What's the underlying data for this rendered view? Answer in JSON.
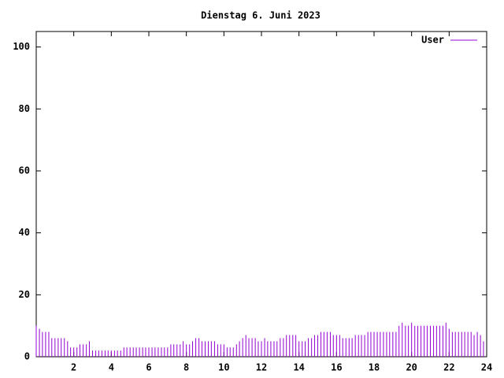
{
  "chart_data": {
    "type": "impulses",
    "title": "Dienstag 6. Juni 2023",
    "x": [
      0,
      0.17,
      0.33,
      0.5,
      0.67,
      0.83,
      1,
      1.17,
      1.33,
      1.5,
      1.67,
      1.83,
      2,
      2.17,
      2.33,
      2.5,
      2.67,
      2.83,
      3,
      3.17,
      3.33,
      3.5,
      3.67,
      3.83,
      4,
      4.17,
      4.33,
      4.5,
      4.67,
      4.83,
      5,
      5.17,
      5.33,
      5.5,
      5.67,
      5.83,
      6,
      6.17,
      6.33,
      6.5,
      6.67,
      6.83,
      7,
      7.17,
      7.33,
      7.5,
      7.67,
      7.83,
      8,
      8.17,
      8.33,
      8.5,
      8.67,
      8.83,
      9,
      9.17,
      9.33,
      9.5,
      9.67,
      9.83,
      10,
      10.17,
      10.33,
      10.5,
      10.67,
      10.83,
      11,
      11.17,
      11.33,
      11.5,
      11.67,
      11.83,
      12,
      12.17,
      12.33,
      12.5,
      12.67,
      12.83,
      13,
      13.17,
      13.33,
      13.5,
      13.67,
      13.83,
      14,
      14.17,
      14.33,
      14.5,
      14.67,
      14.83,
      15,
      15.17,
      15.33,
      15.5,
      15.67,
      15.83,
      16,
      16.17,
      16.33,
      16.5,
      16.67,
      16.83,
      17,
      17.17,
      17.33,
      17.5,
      17.67,
      17.83,
      18,
      18.17,
      18.33,
      18.5,
      18.67,
      18.83,
      19,
      19.17,
      19.33,
      19.5,
      19.67,
      19.83,
      20,
      20.17,
      20.33,
      20.5,
      20.67,
      20.83,
      21,
      21.17,
      21.33,
      21.5,
      21.67,
      21.83,
      22,
      22.17,
      22.33,
      22.5,
      22.67,
      22.83,
      23,
      23.17,
      23.33,
      23.5,
      23.67,
      23.83
    ],
    "series": [
      {
        "name": "User",
        "color": "#9400d3",
        "values": [
          10,
          9,
          8,
          8,
          8,
          6,
          6,
          6,
          6,
          6,
          5,
          3,
          3,
          3,
          4,
          4,
          4,
          5,
          2,
          2,
          2,
          2,
          2,
          2,
          2,
          2,
          2,
          2,
          3,
          3,
          3,
          3,
          3,
          3,
          3,
          3,
          3,
          3,
          3,
          3,
          3,
          3,
          3,
          4,
          4,
          4,
          4,
          5,
          4,
          4,
          5,
          6,
          6,
          5,
          5,
          5,
          5,
          5,
          4,
          4,
          4,
          3,
          3,
          3,
          4,
          5,
          6,
          7,
          6,
          6,
          6,
          5,
          5,
          6,
          5,
          5,
          5,
          5,
          6,
          6,
          7,
          7,
          7,
          7,
          5,
          5,
          5,
          6,
          6,
          7,
          7,
          8,
          8,
          8,
          8,
          7,
          7,
          7,
          6,
          6,
          6,
          6,
          7,
          7,
          7,
          7,
          8,
          8,
          8,
          8,
          8,
          8,
          8,
          8,
          8,
          8,
          10,
          11,
          10,
          10,
          11,
          10,
          10,
          10,
          10,
          10,
          10,
          10,
          10,
          10,
          10,
          11,
          9,
          8,
          8,
          8,
          8,
          8,
          8,
          8,
          7,
          8,
          7,
          5
        ]
      }
    ],
    "xlim": [
      0,
      24
    ],
    "xticks": [
      2,
      4,
      6,
      8,
      10,
      12,
      14,
      16,
      18,
      20,
      22,
      24
    ],
    "ylim": [
      0,
      105
    ],
    "yticks": [
      0,
      20,
      40,
      60,
      80,
      100
    ],
    "legend": "top-right"
  }
}
